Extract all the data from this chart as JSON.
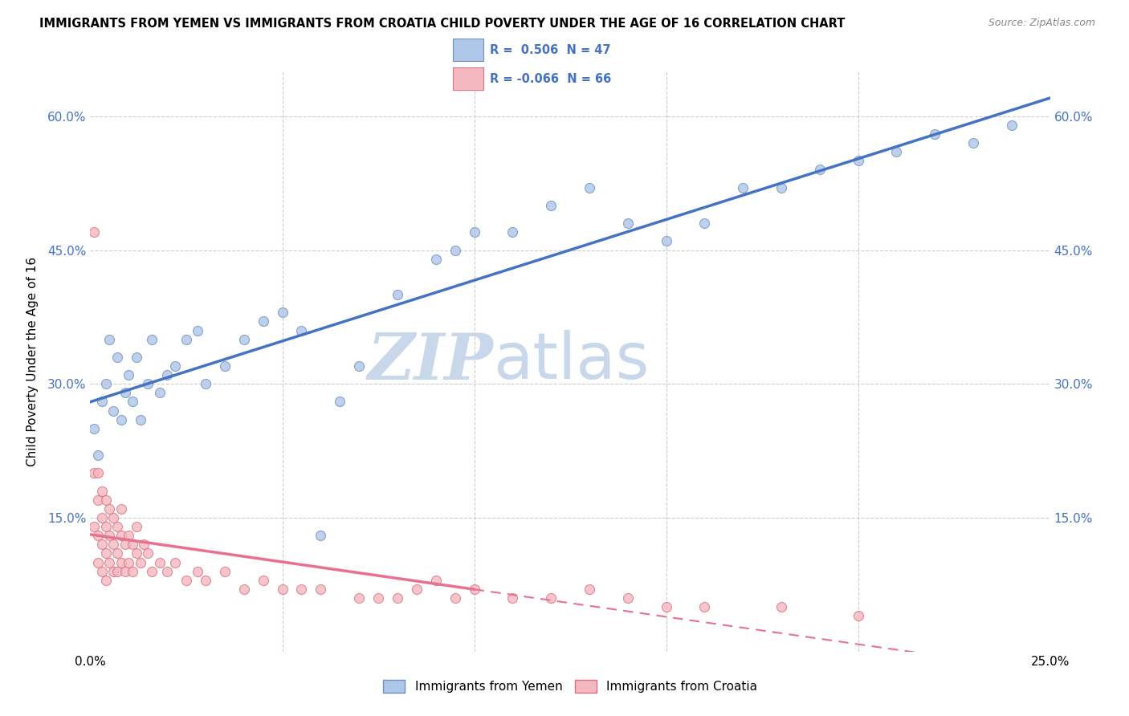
{
  "title": "IMMIGRANTS FROM YEMEN VS IMMIGRANTS FROM CROATIA CHILD POVERTY UNDER THE AGE OF 16 CORRELATION CHART",
  "source": "Source: ZipAtlas.com",
  "ylabel": "Child Poverty Under the Age of 16",
  "x_min": 0.0,
  "x_max": 0.25,
  "y_min": 0.0,
  "y_max": 0.65,
  "x_ticks": [
    0.0,
    0.05,
    0.1,
    0.15,
    0.2,
    0.25
  ],
  "y_ticks": [
    0.0,
    0.15,
    0.3,
    0.45,
    0.6
  ],
  "line_yemen_color": "#4472c4",
  "line_croatia_color": "#e87090",
  "scatter_yemen_color": "#aec6e8",
  "scatter_croatia_color": "#f4b8c1",
  "scatter_edge_yemen": "#7090c0",
  "scatter_edge_croatia": "#e07080",
  "scatter_alpha": 0.8,
  "scatter_size": 75,
  "background_color": "#ffffff",
  "watermark_zip": "ZIP",
  "watermark_atlas": "atlas",
  "watermark_color": "#c8d8ea",
  "grid_color": "#cccccc",
  "yemen_x": [
    0.001,
    0.002,
    0.003,
    0.004,
    0.005,
    0.006,
    0.007,
    0.008,
    0.009,
    0.01,
    0.011,
    0.012,
    0.013,
    0.015,
    0.016,
    0.018,
    0.02,
    0.022,
    0.025,
    0.028,
    0.03,
    0.035,
    0.04,
    0.045,
    0.05,
    0.055,
    0.06,
    0.065,
    0.07,
    0.08,
    0.09,
    0.095,
    0.1,
    0.11,
    0.12,
    0.13,
    0.14,
    0.15,
    0.16,
    0.17,
    0.18,
    0.19,
    0.2,
    0.21,
    0.22,
    0.23,
    0.24
  ],
  "yemen_y": [
    0.25,
    0.22,
    0.28,
    0.3,
    0.35,
    0.27,
    0.33,
    0.26,
    0.29,
    0.31,
    0.28,
    0.33,
    0.26,
    0.3,
    0.35,
    0.29,
    0.31,
    0.32,
    0.35,
    0.36,
    0.3,
    0.32,
    0.35,
    0.37,
    0.38,
    0.36,
    0.13,
    0.28,
    0.32,
    0.4,
    0.44,
    0.45,
    0.47,
    0.47,
    0.5,
    0.52,
    0.48,
    0.46,
    0.48,
    0.52,
    0.52,
    0.54,
    0.55,
    0.56,
    0.58,
    0.57,
    0.59
  ],
  "croatia_x": [
    0.001,
    0.001,
    0.001,
    0.002,
    0.002,
    0.002,
    0.002,
    0.003,
    0.003,
    0.003,
    0.003,
    0.004,
    0.004,
    0.004,
    0.004,
    0.005,
    0.005,
    0.005,
    0.006,
    0.006,
    0.006,
    0.007,
    0.007,
    0.007,
    0.008,
    0.008,
    0.008,
    0.009,
    0.009,
    0.01,
    0.01,
    0.011,
    0.011,
    0.012,
    0.012,
    0.013,
    0.014,
    0.015,
    0.016,
    0.018,
    0.02,
    0.022,
    0.025,
    0.028,
    0.03,
    0.035,
    0.04,
    0.05,
    0.06,
    0.08,
    0.1,
    0.12,
    0.14,
    0.16,
    0.18,
    0.2,
    0.13,
    0.09,
    0.07,
    0.045,
    0.055,
    0.075,
    0.085,
    0.095,
    0.11,
    0.15
  ],
  "croatia_y": [
    0.47,
    0.2,
    0.14,
    0.17,
    0.13,
    0.2,
    0.1,
    0.15,
    0.12,
    0.18,
    0.09,
    0.14,
    0.11,
    0.17,
    0.08,
    0.13,
    0.1,
    0.16,
    0.12,
    0.09,
    0.15,
    0.11,
    0.14,
    0.09,
    0.13,
    0.1,
    0.16,
    0.12,
    0.09,
    0.13,
    0.1,
    0.12,
    0.09,
    0.11,
    0.14,
    0.1,
    0.12,
    0.11,
    0.09,
    0.1,
    0.09,
    0.1,
    0.08,
    0.09,
    0.08,
    0.09,
    0.07,
    0.07,
    0.07,
    0.06,
    0.07,
    0.06,
    0.06,
    0.05,
    0.05,
    0.04,
    0.07,
    0.08,
    0.06,
    0.08,
    0.07,
    0.06,
    0.07,
    0.06,
    0.06,
    0.05
  ],
  "line_croatia_solid_end": 0.1,
  "line_croatia_dashed_start": 0.1
}
